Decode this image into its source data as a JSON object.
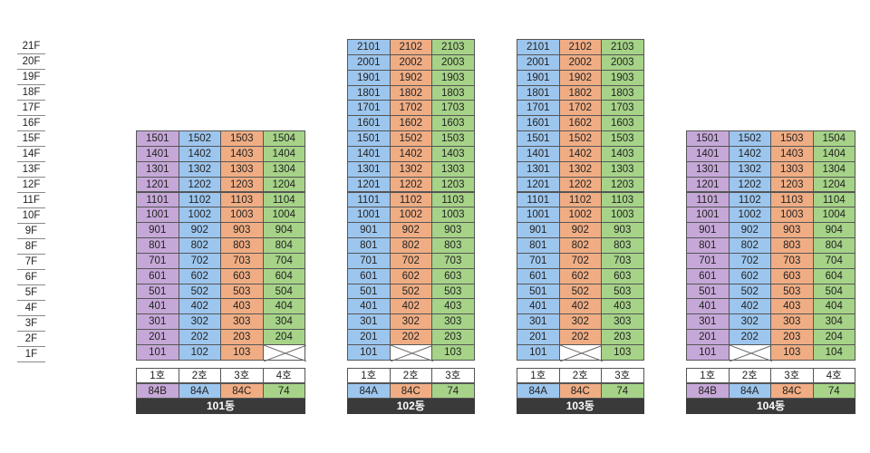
{
  "floors": [
    "21F",
    "20F",
    "19F",
    "18F",
    "17F",
    "16F",
    "15F",
    "14F",
    "13F",
    "12F",
    "11F",
    "10F",
    "9F",
    "8F",
    "7F",
    "6F",
    "5F",
    "4F",
    "3F",
    "2F",
    "1F"
  ],
  "colors": {
    "84B": "#c6a8d8",
    "84A": "#9dc6ee",
    "84C": "#f0ad84",
    "74": "#a6d388"
  },
  "buildings": [
    {
      "name": "101동",
      "top_floor": 15,
      "lines": [
        {
          "header": "1호",
          "type": "84B",
          "empty_floors": []
        },
        {
          "header": "2호",
          "type": "84A",
          "empty_floors": []
        },
        {
          "header": "3호",
          "type": "84C",
          "empty_floors": []
        },
        {
          "header": "4호",
          "type": "74",
          "empty_floors": [
            1
          ]
        }
      ]
    },
    {
      "name": "102동",
      "top_floor": 21,
      "lines": [
        {
          "header": "1호",
          "type": "84A",
          "empty_floors": []
        },
        {
          "header": "2호",
          "type": "84C",
          "empty_floors": [
            1
          ]
        },
        {
          "header": "3호",
          "type": "74",
          "empty_floors": []
        }
      ]
    },
    {
      "name": "103동",
      "top_floor": 21,
      "lines": [
        {
          "header": "1호",
          "type": "84A",
          "empty_floors": []
        },
        {
          "header": "2호",
          "type": "84C",
          "empty_floors": [
            1
          ]
        },
        {
          "header": "3호",
          "type": "74",
          "empty_floors": []
        }
      ]
    },
    {
      "name": "104동",
      "top_floor": 15,
      "lines": [
        {
          "header": "1호",
          "type": "84B",
          "empty_floors": []
        },
        {
          "header": "2호",
          "type": "84A",
          "empty_floors": [
            1
          ]
        },
        {
          "header": "3호",
          "type": "84C",
          "empty_floors": []
        },
        {
          "header": "4호",
          "type": "74",
          "empty_floors": []
        }
      ]
    }
  ]
}
